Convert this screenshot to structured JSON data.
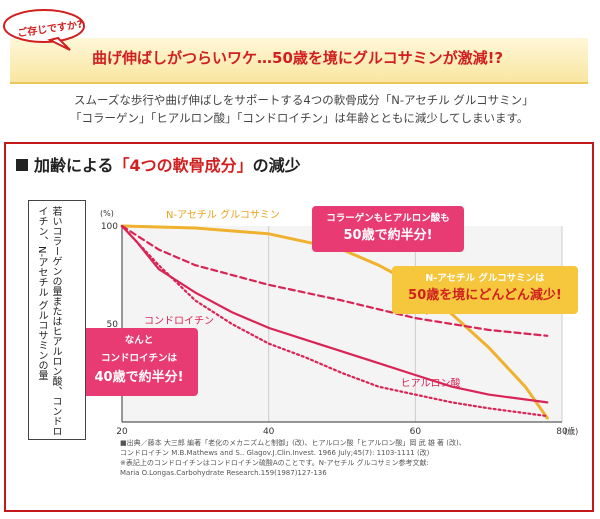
{
  "header": {
    "badge": "ご存じですか?",
    "headline": "曲げ伸ばしがつらいワケ…50歳を境にグルコサミンが激減!?"
  },
  "intro": {
    "line1": "スムーズな歩行や曲げ伸ばしをサポートする4つの軟骨成分「N-アセチル グルコサミン」",
    "line2": "「コラーゲン」「ヒアルロン酸」「コンドロイチン」は年齢とともに減少してしまいます。"
  },
  "panel": {
    "title_prefix": "加齢による",
    "title_highlight": "「4つの軟骨成分」",
    "title_suffix": "の減少"
  },
  "chart_data": {
    "type": "line",
    "xlabel": "年齢",
    "x_unit": "(歳)",
    "y_unit": "(%)",
    "ylabel": "若いコラーゲンの量またはヒアルロン酸、コンドロイチン、N-アセチル グルコサミンの量",
    "xlim": [
      20,
      80
    ],
    "ylim": [
      0,
      100
    ],
    "x_ticks": [
      "20",
      "40",
      "60",
      "80"
    ],
    "y_ticks": [
      "100",
      "50"
    ],
    "series": [
      {
        "name": "N-アセチル グルコサミン",
        "color": "#f0b22e",
        "style": "solid",
        "x": [
          20,
          30,
          40,
          45,
          50,
          55,
          60,
          65,
          70,
          75,
          78
        ],
        "y": [
          100,
          99,
          96,
          92,
          88,
          80,
          70,
          55,
          38,
          18,
          2
        ]
      },
      {
        "name": "コラーゲン",
        "color": "#d92456",
        "style": "dashed",
        "x": [
          20,
          25,
          30,
          40,
          50,
          60,
          70,
          78
        ],
        "y": [
          100,
          88,
          80,
          70,
          62,
          53,
          47,
          44
        ]
      },
      {
        "name": "コンドロイチン",
        "color": "#d92456",
        "style": "solid",
        "x": [
          20,
          22,
          25,
          30,
          35,
          40,
          45,
          50,
          55,
          60,
          65,
          70,
          78
        ],
        "y": [
          100,
          92,
          78,
          66,
          56,
          48,
          42,
          36,
          30,
          24,
          18,
          14,
          10
        ]
      },
      {
        "name": "ヒアルロン酸",
        "color": "#d92456",
        "style": "dotted",
        "x": [
          20,
          25,
          30,
          35,
          40,
          45,
          50,
          55,
          60,
          65,
          70,
          78
        ],
        "y": [
          100,
          80,
          62,
          50,
          40,
          33,
          25,
          18,
          14,
          10,
          7,
          3
        ]
      }
    ],
    "annotations": [
      {
        "lines": [
          "コラーゲンもヒアルロン酸も",
          "50歳で約半分!"
        ],
        "color": "#e83b74"
      },
      {
        "lines": [
          "N-アセチル グルコサミンは",
          "50歳を境にどんどん減少!"
        ],
        "color": "#f6c63c"
      },
      {
        "lines": [
          "なんと",
          "コンドロイチンは",
          "40歳で約半分!"
        ],
        "color": "#e83b74"
      }
    ]
  },
  "footnote": {
    "line1": "■出典／藤本 大三郎 編著「老化のメカニズムと制御」(改)、ヒアルロン酸「ヒアルロン酸」岡 武 雄 著 (改)、",
    "line2": "コンドロイチン M.B.Mathews and S.. Glagov.J.Clin.Invest. 1966 July;45(7): 1103-1111 (改)",
    "line3": "※表記上のコンドロイチンはコンドロイチン硫酸Aのことです。N-アセチル グルコサミン参考文献:",
    "line4": "Maria O.Longas.Carbohydrate Research.159(1987)127-136"
  }
}
